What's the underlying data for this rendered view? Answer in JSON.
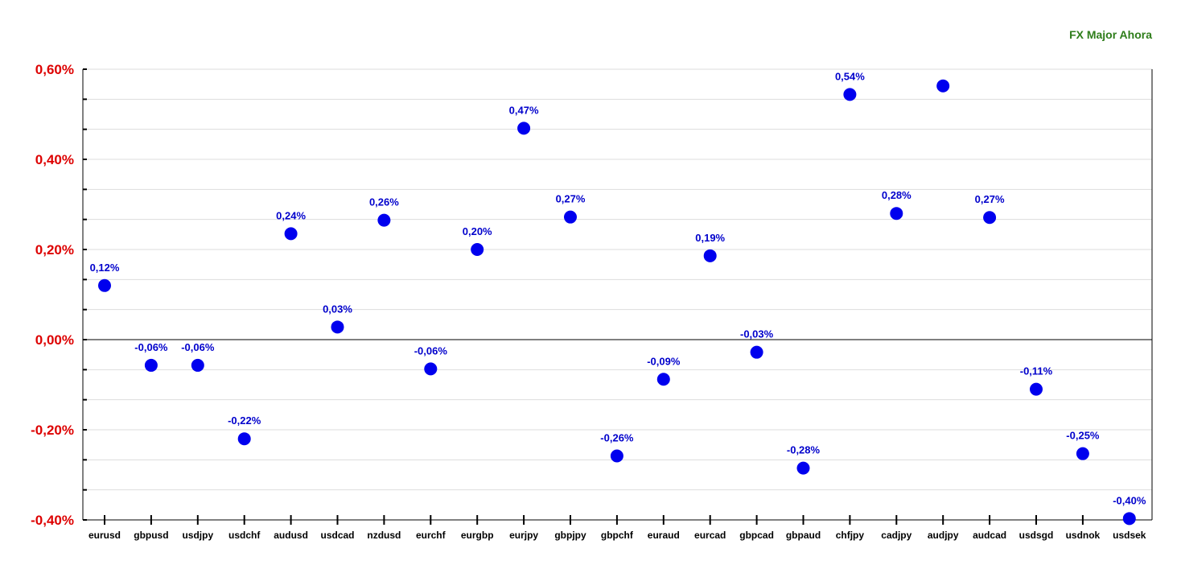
{
  "chart_data": {
    "type": "scatter",
    "title": "FX Major Ahora",
    "ylim": [
      -0.4,
      0.6
    ],
    "y_ticks": [
      {
        "value": 0.6,
        "label": "0,60%"
      },
      {
        "value": 0.4,
        "label": "0,40%"
      },
      {
        "value": 0.2,
        "label": "0,20%"
      },
      {
        "value": 0.0,
        "label": "0,00%"
      },
      {
        "value": -0.2,
        "label": "-0,20%"
      },
      {
        "value": -0.4,
        "label": "-0,40%"
      }
    ],
    "grid": true,
    "categories": [
      "eurusd",
      "gbpusd",
      "usdjpy",
      "usdchf",
      "audusd",
      "usdcad",
      "nzdusd",
      "eurchf",
      "eurgbp",
      "eurjpy",
      "gbpjpy",
      "gbpchf",
      "euraud",
      "eurcad",
      "gbpcad",
      "gbpaud",
      "chfjpy",
      "cadjpy",
      "audjpy",
      "audcad",
      "usdsgd",
      "usdnok",
      "usdsek"
    ],
    "values": [
      0.12,
      -0.057,
      -0.057,
      -0.22,
      0.235,
      0.028,
      0.265,
      -0.065,
      0.2,
      0.469,
      0.272,
      -0.258,
      -0.088,
      0.186,
      -0.028,
      -0.285,
      0.544,
      0.28,
      0.563,
      0.271,
      -0.11,
      -0.253,
      -0.397
    ],
    "labels": [
      "0,12%",
      "-0,06%",
      "-0,06%",
      "-0,22%",
      "0,24%",
      "0,03%",
      "0,26%",
      "-0,06%",
      "0,20%",
      "0,47%",
      "0,27%",
      "-0,26%",
      "-0,09%",
      "0,19%",
      "-0,03%",
      "-0,28%",
      "0,54%",
      "0,28%",
      "",
      "0,27%",
      "-0,11%",
      "-0,25%",
      "-0,40%"
    ],
    "colors": {
      "marker": "#0000ee",
      "data_label": "#0000cc",
      "y_tick_label": "#dd0000",
      "title": "#2e7d1a",
      "grid": "#dddddd",
      "axis": "#000000"
    }
  }
}
